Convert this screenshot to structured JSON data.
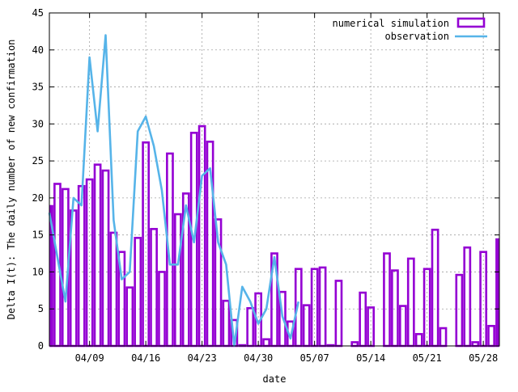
{
  "chart_data": {
    "type": "bar",
    "xlabel": "date",
    "ylabel": "Delta I(t): The daily number of new confirmation",
    "ylim": [
      0,
      45
    ],
    "yticks": [
      0,
      5,
      10,
      15,
      20,
      25,
      30,
      35,
      40,
      45
    ],
    "x_day_range": [
      0,
      56
    ],
    "xticks": [
      {
        "label": "04/09",
        "day": 5
      },
      {
        "label": "04/16",
        "day": 12
      },
      {
        "label": "04/23",
        "day": 19
      },
      {
        "label": "04/30",
        "day": 26
      },
      {
        "label": "05/07",
        "day": 33
      },
      {
        "label": "05/14",
        "day": 40
      },
      {
        "label": "05/21",
        "day": 47
      },
      {
        "label": "05/28",
        "day": 54
      }
    ],
    "grid": true,
    "legend_position": "top-right",
    "series": [
      {
        "name": "numerical simulation",
        "style": "bar-outline",
        "color": "#9400d3",
        "days": [
          0,
          1,
          2,
          3,
          4,
          5,
          6,
          7,
          8,
          9,
          10,
          11,
          12,
          13,
          14,
          15,
          16,
          17,
          18,
          19,
          20,
          21,
          22,
          23,
          24,
          25,
          26,
          27,
          28,
          29,
          30,
          31,
          32,
          33,
          34,
          35,
          36,
          37,
          38,
          39,
          40,
          41,
          42,
          43,
          44,
          45,
          46,
          47,
          48,
          49,
          50,
          51,
          52,
          53,
          54,
          55,
          56
        ],
        "values": [
          18.9,
          21.9,
          21.2,
          18.3,
          21.6,
          22.5,
          24.5,
          23.7,
          15.3,
          12.7,
          7.9,
          14.6,
          27.5,
          15.8,
          10.0,
          26.0,
          17.8,
          20.6,
          28.8,
          29.7,
          27.6,
          17.1,
          6.1,
          3.5,
          0.1,
          5.1,
          7.1,
          0.9,
          12.5,
          7.3,
          3.3,
          10.4,
          5.5,
          10.4,
          10.6,
          0.1,
          8.8,
          0,
          0.5,
          7.2,
          5.2,
          0,
          12.5,
          10.2,
          5.4,
          11.8,
          1.6,
          10.4,
          15.7,
          2.4,
          0,
          9.6,
          13.3,
          0.5,
          12.7,
          2.7,
          14.4
        ]
      },
      {
        "name": "observation",
        "style": "line",
        "color": "#56b4e9",
        "days": [
          0,
          1,
          2,
          3,
          4,
          5,
          6,
          7,
          8,
          9,
          10,
          11,
          12,
          13,
          14,
          15,
          16,
          17,
          18,
          19,
          20,
          21,
          22,
          23,
          24,
          25,
          26,
          27,
          28,
          29,
          30,
          31
        ],
        "values": [
          18,
          12,
          6,
          20,
          19,
          39,
          29,
          42,
          17,
          9,
          10,
          29,
          31,
          27,
          21,
          11,
          11,
          19,
          14,
          23,
          24,
          14,
          11,
          0,
          8,
          6,
          3,
          5,
          12,
          4,
          1,
          6
        ]
      }
    ]
  }
}
